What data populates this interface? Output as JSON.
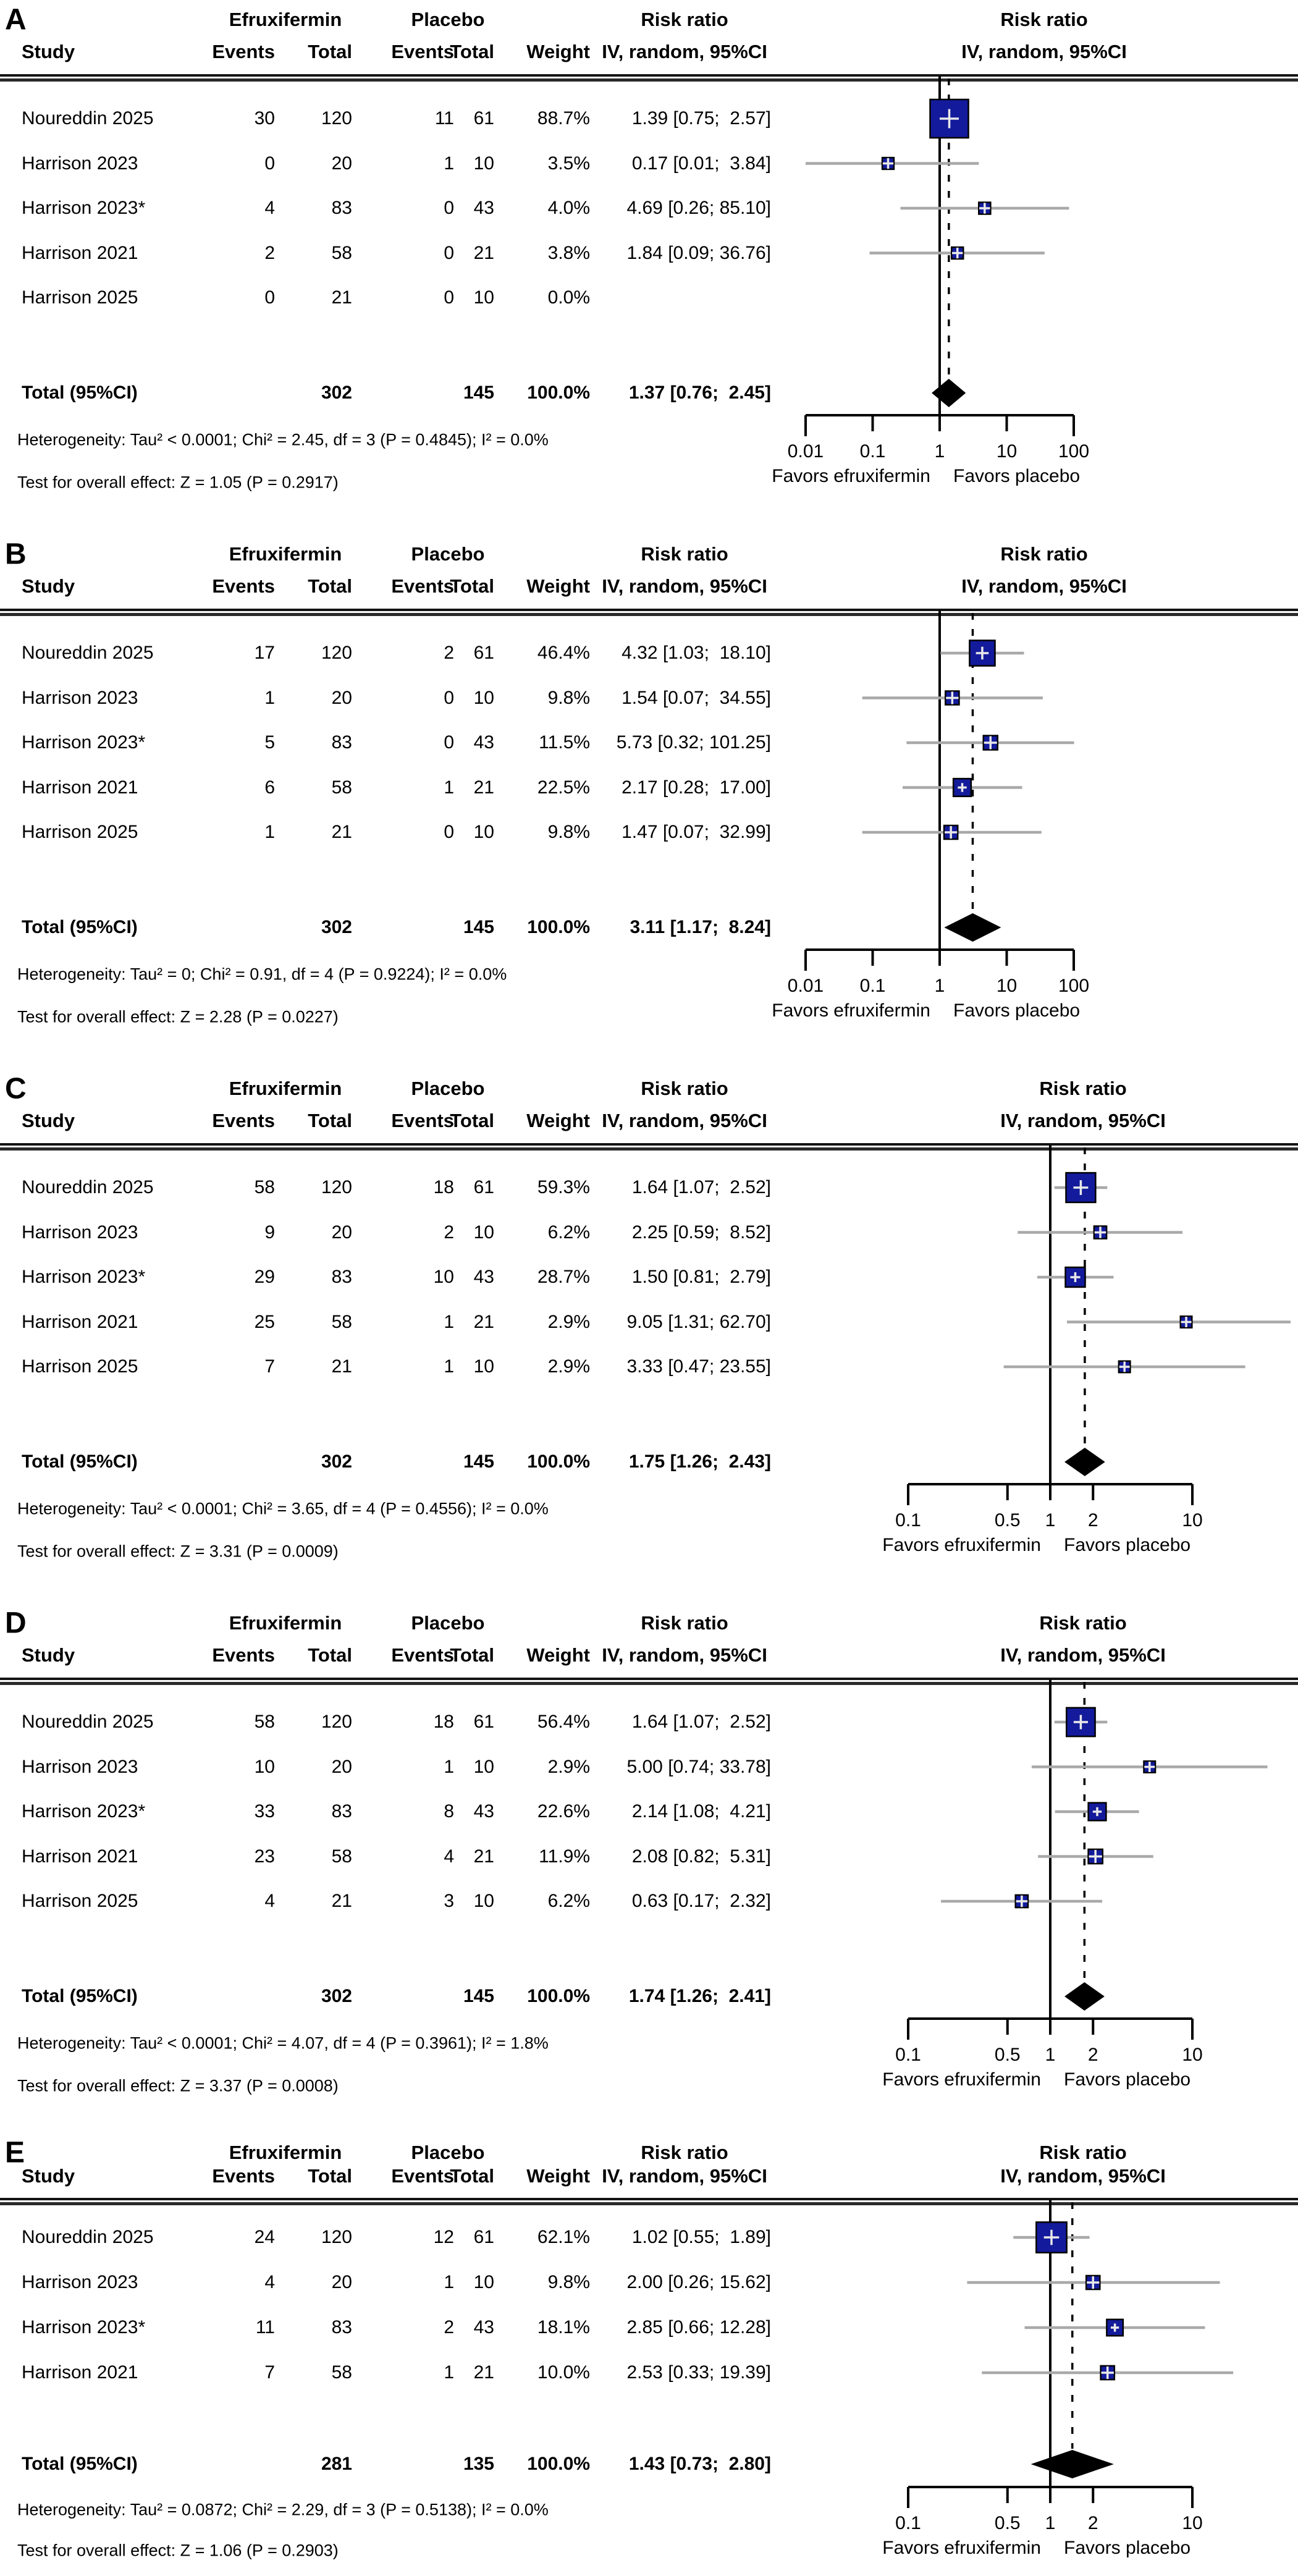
{
  "header": {
    "study": "Study",
    "group1": "Efruxifermin",
    "group2": "Placebo",
    "events": "Events",
    "total": "Total",
    "weight": "Weight",
    "method": "IV, random, 95%CI",
    "risk_ratio": "Risk ratio"
  },
  "colors": {
    "square": "#131b9c",
    "ci_line": "#a9a9a9",
    "diamond": "#000000",
    "axis": "#000000",
    "square_cross": "#e8e8e8"
  },
  "chart_data": [
    {
      "type": "scatter",
      "subtype": "forest-plot",
      "panel": "A",
      "title": "Risk ratio",
      "method": "IV, random, 95%CI",
      "xscale": "log",
      "xlim": [
        0.01,
        100
      ],
      "xticks": [
        "0.01",
        "0.1",
        "1",
        "10",
        "100"
      ],
      "favors_left": "Favors efruxifermin",
      "favors_right": "Favors placebo",
      "studies": [
        {
          "study": "Noureddin 2025",
          "t_events": "30",
          "t_total": "120",
          "c_events": "11",
          "c_total": "61",
          "weight": "88.7%",
          "weight_pct": 88.7,
          "rr": 1.39,
          "ci_low": 0.75,
          "ci_high": 2.57,
          "ci_text": "1.39 [0.75;  2.57]"
        },
        {
          "study": "Harrison 2023",
          "t_events": "0",
          "t_total": "20",
          "c_events": "1",
          "c_total": "10",
          "weight": "3.5%",
          "weight_pct": 3.5,
          "rr": 0.17,
          "ci_low": 0.01,
          "ci_high": 3.84,
          "ci_text": "0.17 [0.01;  3.84]"
        },
        {
          "study": "Harrison 2023*",
          "t_events": "4",
          "t_total": "83",
          "c_events": "0",
          "c_total": "43",
          "weight": "4.0%",
          "weight_pct": 4.0,
          "rr": 4.69,
          "ci_low": 0.26,
          "ci_high": 85.1,
          "ci_text": "4.69 [0.26; 85.10]"
        },
        {
          "study": "Harrison 2021",
          "t_events": "2",
          "t_total": "58",
          "c_events": "0",
          "c_total": "21",
          "weight": "3.8%",
          "weight_pct": 3.8,
          "rr": 1.84,
          "ci_low": 0.09,
          "ci_high": 36.76,
          "ci_text": "1.84 [0.09; 36.76]"
        },
        {
          "study": "Harrison 2025",
          "t_events": "0",
          "t_total": "21",
          "c_events": "0",
          "c_total": "10",
          "weight": "0.0%",
          "weight_pct": 0.0,
          "rr": null,
          "ci_low": null,
          "ci_high": null,
          "ci_text": ""
        }
      ],
      "total": {
        "label": "Total (95%CI)",
        "t_total": "302",
        "c_total": "145",
        "weight": "100.0%",
        "rr": 1.37,
        "ci_low": 0.76,
        "ci_high": 2.45,
        "ci_text": "1.37 [0.76;  2.45]"
      },
      "heterogeneity": "Heterogeneity: Tau² < 0.0001; Chi² = 2.45, df = 3 (P = 0.4845); I² = 0.0%",
      "overall_test": "Test for overall effect: Z = 1.05 (P = 0.2917)"
    },
    {
      "type": "scatter",
      "subtype": "forest-plot",
      "panel": "B",
      "title": "Risk ratio",
      "method": "IV, random, 95%CI",
      "xscale": "log",
      "xlim": [
        0.01,
        100
      ],
      "xticks": [
        "0.01",
        "0.1",
        "1",
        "10",
        "100"
      ],
      "favors_left": "Favors efruxifermin",
      "favors_right": "Favors placebo",
      "studies": [
        {
          "study": "Noureddin 2025",
          "t_events": "17",
          "t_total": "120",
          "c_events": "2",
          "c_total": "61",
          "weight": "46.4%",
          "weight_pct": 46.4,
          "rr": 4.32,
          "ci_low": 1.03,
          "ci_high": 18.1,
          "ci_text": "4.32 [1.03;  18.10]"
        },
        {
          "study": "Harrison 2023",
          "t_events": "1",
          "t_total": "20",
          "c_events": "0",
          "c_total": "10",
          "weight": "9.8%",
          "weight_pct": 9.8,
          "rr": 1.54,
          "ci_low": 0.07,
          "ci_high": 34.55,
          "ci_text": "1.54 [0.07;  34.55]"
        },
        {
          "study": "Harrison 2023*",
          "t_events": "5",
          "t_total": "83",
          "c_events": "0",
          "c_total": "43",
          "weight": "11.5%",
          "weight_pct": 11.5,
          "rr": 5.73,
          "ci_low": 0.32,
          "ci_high": 101.25,
          "ci_text": "5.73 [0.32; 101.25]"
        },
        {
          "study": "Harrison 2021",
          "t_events": "6",
          "t_total": "58",
          "c_events": "1",
          "c_total": "21",
          "weight": "22.5%",
          "weight_pct": 22.5,
          "rr": 2.17,
          "ci_low": 0.28,
          "ci_high": 17.0,
          "ci_text": "2.17 [0.28;  17.00]"
        },
        {
          "study": "Harrison 2025",
          "t_events": "1",
          "t_total": "21",
          "c_events": "0",
          "c_total": "10",
          "weight": "9.8%",
          "weight_pct": 9.8,
          "rr": 1.47,
          "ci_low": 0.07,
          "ci_high": 32.99,
          "ci_text": "1.47 [0.07;  32.99]"
        }
      ],
      "total": {
        "label": "Total (95%CI)",
        "t_total": "302",
        "c_total": "145",
        "weight": "100.0%",
        "rr": 3.11,
        "ci_low": 1.17,
        "ci_high": 8.24,
        "ci_text": "3.11 [1.17;  8.24]"
      },
      "heterogeneity": "Heterogeneity: Tau² = 0; Chi² = 0.91, df = 4 (P = 0.9224); I² = 0.0%",
      "overall_test": "Test for overall effect: Z = 2.28 (P = 0.0227)"
    },
    {
      "type": "scatter",
      "subtype": "forest-plot",
      "panel": "C",
      "title": "Risk ratio",
      "method": "IV, random, 95%CI",
      "xscale": "log",
      "xlim": [
        0.1,
        10
      ],
      "xticks": [
        "0.1",
        "0.5",
        "1",
        "2",
        "10"
      ],
      "favors_left": "Favors efruxifermin",
      "favors_right": "Favors placebo",
      "studies": [
        {
          "study": "Noureddin 2025",
          "t_events": "58",
          "t_total": "120",
          "c_events": "18",
          "c_total": "61",
          "weight": "59.3%",
          "weight_pct": 59.3,
          "rr": 1.64,
          "ci_low": 1.07,
          "ci_high": 2.52,
          "ci_text": "1.64 [1.07;  2.52]"
        },
        {
          "study": "Harrison 2023",
          "t_events": "9",
          "t_total": "20",
          "c_events": "2",
          "c_total": "10",
          "weight": "6.2%",
          "weight_pct": 6.2,
          "rr": 2.25,
          "ci_low": 0.59,
          "ci_high": 8.52,
          "ci_text": "2.25 [0.59;  8.52]"
        },
        {
          "study": "Harrison 2023*",
          "t_events": "29",
          "t_total": "83",
          "c_events": "10",
          "c_total": "43",
          "weight": "28.7%",
          "weight_pct": 28.7,
          "rr": 1.5,
          "ci_low": 0.81,
          "ci_high": 2.79,
          "ci_text": "1.50 [0.81;  2.79]"
        },
        {
          "study": "Harrison 2021",
          "t_events": "25",
          "t_total": "58",
          "c_events": "1",
          "c_total": "21",
          "weight": "2.9%",
          "weight_pct": 2.9,
          "rr": 9.05,
          "ci_low": 1.31,
          "ci_high": 62.7,
          "ci_text": "9.05 [1.31; 62.70]"
        },
        {
          "study": "Harrison 2025",
          "t_events": "7",
          "t_total": "21",
          "c_events": "1",
          "c_total": "10",
          "weight": "2.9%",
          "weight_pct": 2.9,
          "rr": 3.33,
          "ci_low": 0.47,
          "ci_high": 23.55,
          "ci_text": "3.33 [0.47; 23.55]"
        }
      ],
      "total": {
        "label": "Total (95%CI)",
        "t_total": "302",
        "c_total": "145",
        "weight": "100.0%",
        "rr": 1.75,
        "ci_low": 1.26,
        "ci_high": 2.43,
        "ci_text": "1.75 [1.26;  2.43]"
      },
      "heterogeneity": "Heterogeneity: Tau² < 0.0001; Chi² = 3.65, df = 4 (P = 0.4556); I² = 0.0%",
      "overall_test": "Test for overall effect: Z = 3.31 (P = 0.0009)"
    },
    {
      "type": "scatter",
      "subtype": "forest-plot",
      "panel": "D",
      "title": "Risk ratio",
      "method": "IV, random, 95%CI",
      "xscale": "log",
      "xlim": [
        0.1,
        10
      ],
      "xticks": [
        "0.1",
        "0.5",
        "1",
        "2",
        "10"
      ],
      "favors_left": "Favors efruxifermin",
      "favors_right": "Favors placebo",
      "studies": [
        {
          "study": "Noureddin 2025",
          "t_events": "58",
          "t_total": "120",
          "c_events": "18",
          "c_total": "61",
          "weight": "56.4%",
          "weight_pct": 56.4,
          "rr": 1.64,
          "ci_low": 1.07,
          "ci_high": 2.52,
          "ci_text": "1.64 [1.07;  2.52]"
        },
        {
          "study": "Harrison 2023",
          "t_events": "10",
          "t_total": "20",
          "c_events": "1",
          "c_total": "10",
          "weight": "2.9%",
          "weight_pct": 2.9,
          "rr": 5.0,
          "ci_low": 0.74,
          "ci_high": 33.78,
          "ci_text": "5.00 [0.74; 33.78]"
        },
        {
          "study": "Harrison 2023*",
          "t_events": "33",
          "t_total": "83",
          "c_events": "8",
          "c_total": "43",
          "weight": "22.6%",
          "weight_pct": 22.6,
          "rr": 2.14,
          "ci_low": 1.08,
          "ci_high": 4.21,
          "ci_text": "2.14 [1.08;  4.21]"
        },
        {
          "study": "Harrison 2021",
          "t_events": "23",
          "t_total": "58",
          "c_events": "4",
          "c_total": "21",
          "weight": "11.9%",
          "weight_pct": 11.9,
          "rr": 2.08,
          "ci_low": 0.82,
          "ci_high": 5.31,
          "ci_text": "2.08 [0.82;  5.31]"
        },
        {
          "study": "Harrison 2025",
          "t_events": "4",
          "t_total": "21",
          "c_events": "3",
          "c_total": "10",
          "weight": "6.2%",
          "weight_pct": 6.2,
          "rr": 0.63,
          "ci_low": 0.17,
          "ci_high": 2.32,
          "ci_text": "0.63 [0.17;  2.32]"
        }
      ],
      "total": {
        "label": "Total (95%CI)",
        "t_total": "302",
        "c_total": "145",
        "weight": "100.0%",
        "rr": 1.74,
        "ci_low": 1.26,
        "ci_high": 2.41,
        "ci_text": "1.74 [1.26;  2.41]"
      },
      "heterogeneity": "Heterogeneity: Tau² < 0.0001; Chi² = 4.07, df = 4 (P = 0.3961); I² = 1.8%",
      "overall_test": "Test for overall effect: Z = 3.37 (P = 0.0008)"
    },
    {
      "type": "scatter",
      "subtype": "forest-plot",
      "panel": "E",
      "title": "Risk ratio",
      "method": "IV, random, 95%CI",
      "xscale": "log",
      "xlim": [
        0.1,
        10
      ],
      "xticks": [
        "0.1",
        "0.5",
        "1",
        "2",
        "10"
      ],
      "favors_left": "Favors efruxifermin",
      "favors_right": "Favors placebo",
      "studies": [
        {
          "study": "Noureddin 2025",
          "t_events": "24",
          "t_total": "120",
          "c_events": "12",
          "c_total": "61",
          "weight": "62.1%",
          "weight_pct": 62.1,
          "rr": 1.02,
          "ci_low": 0.55,
          "ci_high": 1.89,
          "ci_text": "1.02 [0.55;  1.89]"
        },
        {
          "study": "Harrison 2023",
          "t_events": "4",
          "t_total": "20",
          "c_events": "1",
          "c_total": "10",
          "weight": "9.8%",
          "weight_pct": 9.8,
          "rr": 2.0,
          "ci_low": 0.26,
          "ci_high": 15.62,
          "ci_text": "2.00 [0.26; 15.62]"
        },
        {
          "study": "Harrison 2023*",
          "t_events": "11",
          "t_total": "83",
          "c_events": "2",
          "c_total": "43",
          "weight": "18.1%",
          "weight_pct": 18.1,
          "rr": 2.85,
          "ci_low": 0.66,
          "ci_high": 12.28,
          "ci_text": "2.85 [0.66; 12.28]"
        },
        {
          "study": "Harrison 2021",
          "t_events": "7",
          "t_total": "58",
          "c_events": "1",
          "c_total": "21",
          "weight": "10.0%",
          "weight_pct": 10.0,
          "rr": 2.53,
          "ci_low": 0.33,
          "ci_high": 19.39,
          "ci_text": "2.53 [0.33; 19.39]"
        }
      ],
      "total": {
        "label": "Total (95%CI)",
        "t_total": "281",
        "c_total": "135",
        "weight": "100.0%",
        "rr": 1.43,
        "ci_low": 0.73,
        "ci_high": 2.8,
        "ci_text": "1.43 [0.73;  2.80]"
      },
      "heterogeneity": "Heterogeneity: Tau² = 0.0872; Chi² = 2.29, df = 3 (P = 0.5138); I² = 0.0%",
      "overall_test": "Test for overall effect: Z = 1.06 (P = 0.2903)"
    }
  ]
}
